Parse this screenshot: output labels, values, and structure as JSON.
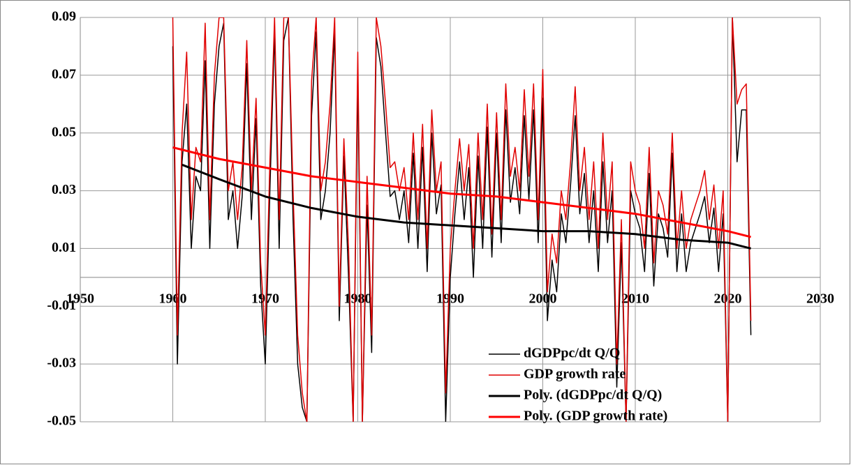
{
  "chart_data": {
    "type": "line",
    "x": [
      1960,
      1960.5,
      1961,
      1961.5,
      1962,
      1962.5,
      1963,
      1963.5,
      1964,
      1964.5,
      1965,
      1965.5,
      1966,
      1966.5,
      1967,
      1967.5,
      1968,
      1968.5,
      1969,
      1969.5,
      1970,
      1970.5,
      1971,
      1971.5,
      1972,
      1972.5,
      1973,
      1973.5,
      1974,
      1974.5,
      1975,
      1975.5,
      1976,
      1976.5,
      1977,
      1977.5,
      1978,
      1978.5,
      1979,
      1979.5,
      1980,
      1980.5,
      1981,
      1981.5,
      1982,
      1982.5,
      1983,
      1983.5,
      1984,
      1984.5,
      1985,
      1985.5,
      1986,
      1986.5,
      1987,
      1987.5,
      1988,
      1988.5,
      1989,
      1989.5,
      1990,
      1990.5,
      1991,
      1991.5,
      1992,
      1992.5,
      1993,
      1993.5,
      1994,
      1994.5,
      1995,
      1995.5,
      1996,
      1996.5,
      1997,
      1997.5,
      1998,
      1998.5,
      1999,
      1999.5,
      2000,
      2000.5,
      2001,
      2001.5,
      2002,
      2002.5,
      2003,
      2003.5,
      2004,
      2004.5,
      2005,
      2005.5,
      2006,
      2006.5,
      2007,
      2007.5,
      2008,
      2008.5,
      2009,
      2009.5,
      2010,
      2010.5,
      2011,
      2011.5,
      2012,
      2012.5,
      2013,
      2013.5,
      2014,
      2014.5,
      2015,
      2015.5,
      2016,
      2016.5,
      2017,
      2017.5,
      2018,
      2018.5,
      2019,
      2019.5,
      2020,
      2020.5,
      2021,
      2021.5,
      2022,
      2022.5
    ],
    "series": [
      {
        "name": "dGDPpc/dt Q/Q",
        "color": "#000000",
        "values": [
          0.08,
          -0.03,
          0.04,
          0.06,
          0.01,
          0.035,
          0.03,
          0.075,
          0.01,
          0.06,
          0.08,
          0.088,
          0.02,
          0.03,
          0.01,
          0.028,
          0.074,
          0.02,
          0.055,
          -0.003,
          -0.03,
          0.03,
          0.085,
          0.01,
          0.082,
          0.09,
          0.02,
          -0.03,
          -0.045,
          -0.05,
          0.056,
          0.085,
          0.02,
          0.03,
          0.05,
          0.085,
          -0.015,
          0.042,
          0.0,
          -0.05,
          0.07,
          -0.05,
          0.025,
          -0.026,
          0.083,
          0.073,
          0.05,
          0.028,
          0.03,
          0.02,
          0.03,
          0.012,
          0.043,
          0.01,
          0.045,
          0.002,
          0.05,
          0.022,
          0.032,
          -0.05,
          0.0,
          0.022,
          0.04,
          0.02,
          0.038,
          0.0,
          0.042,
          0.01,
          0.052,
          0.007,
          0.05,
          0.012,
          0.058,
          0.026,
          0.038,
          0.022,
          0.056,
          0.027,
          0.058,
          0.012,
          0.062,
          -0.015,
          0.006,
          -0.005,
          0.022,
          0.012,
          0.032,
          0.056,
          0.022,
          0.036,
          0.012,
          0.03,
          0.002,
          0.04,
          0.012,
          0.03,
          -0.038,
          0.012,
          -0.05,
          0.03,
          0.022,
          0.017,
          0.002,
          0.036,
          -0.003,
          0.022,
          0.017,
          0.007,
          0.043,
          0.002,
          0.022,
          0.002,
          0.012,
          0.017,
          0.022,
          0.028,
          0.012,
          0.024,
          0.002,
          0.022,
          -0.05,
          0.09,
          0.04,
          0.058,
          0.058,
          -0.02
        ]
      },
      {
        "name": "GDP growth rate",
        "color": "#e00000",
        "values": [
          0.09,
          -0.02,
          0.05,
          0.078,
          0.02,
          0.045,
          0.04,
          0.088,
          0.02,
          0.07,
          0.09,
          0.09,
          0.03,
          0.04,
          0.02,
          0.038,
          0.082,
          0.03,
          0.062,
          0.005,
          -0.02,
          0.04,
          0.09,
          0.02,
          0.09,
          0.09,
          0.03,
          -0.02,
          -0.04,
          -0.05,
          0.068,
          0.09,
          0.03,
          0.04,
          0.06,
          0.09,
          -0.01,
          0.048,
          0.01,
          -0.05,
          0.078,
          -0.05,
          0.035,
          -0.02,
          0.09,
          0.08,
          0.06,
          0.038,
          0.04,
          0.03,
          0.038,
          0.02,
          0.05,
          0.02,
          0.053,
          0.01,
          0.058,
          0.03,
          0.04,
          -0.04,
          0.01,
          0.03,
          0.048,
          0.03,
          0.046,
          0.01,
          0.05,
          0.02,
          0.06,
          0.015,
          0.057,
          0.02,
          0.067,
          0.035,
          0.045,
          0.03,
          0.065,
          0.035,
          0.067,
          0.02,
          0.072,
          -0.005,
          0.015,
          0.005,
          0.03,
          0.02,
          0.04,
          0.066,
          0.03,
          0.045,
          0.02,
          0.04,
          0.01,
          0.05,
          0.02,
          0.04,
          -0.03,
          0.02,
          -0.05,
          0.04,
          0.03,
          0.025,
          0.01,
          0.045,
          0.005,
          0.03,
          0.025,
          0.015,
          0.05,
          0.01,
          0.03,
          0.01,
          0.02,
          0.025,
          0.03,
          0.037,
          0.02,
          0.032,
          0.01,
          0.03,
          -0.05,
          0.09,
          0.06,
          0.065,
          0.067,
          -0.015
        ]
      },
      {
        "name": "Poly. (dGDPpc/dt Q/Q)",
        "color": "#000000",
        "x": [
          1961,
          1965,
          1970,
          1975,
          1980,
          1985,
          1990,
          1995,
          2000,
          2005,
          2010,
          2015,
          2020,
          2022.5
        ],
        "values": [
          0.039,
          0.034,
          0.028,
          0.024,
          0.021,
          0.019,
          0.018,
          0.017,
          0.016,
          0.016,
          0.015,
          0.013,
          0.012,
          0.01
        ]
      },
      {
        "name": "Poly. (GDP growth rate)",
        "color": "#ff0000",
        "x": [
          1960,
          1965,
          1970,
          1975,
          1980,
          1985,
          1990,
          1995,
          2000,
          2005,
          2010,
          2015,
          2020,
          2022.5
        ],
        "values": [
          0.045,
          0.041,
          0.038,
          0.035,
          0.033,
          0.031,
          0.029,
          0.028,
          0.026,
          0.024,
          0.022,
          0.019,
          0.016,
          0.014
        ]
      }
    ],
    "xlim": [
      1950,
      2030
    ],
    "xticks": [
      1950,
      1960,
      1970,
      1980,
      1990,
      2000,
      2010,
      2020,
      2030
    ],
    "ylim": [
      -0.05,
      0.09
    ],
    "yticks": [
      -0.05,
      -0.03,
      -0.01,
      0.01,
      0.03,
      0.05,
      0.07,
      0.09
    ],
    "grid": true,
    "legend": "lower right"
  }
}
